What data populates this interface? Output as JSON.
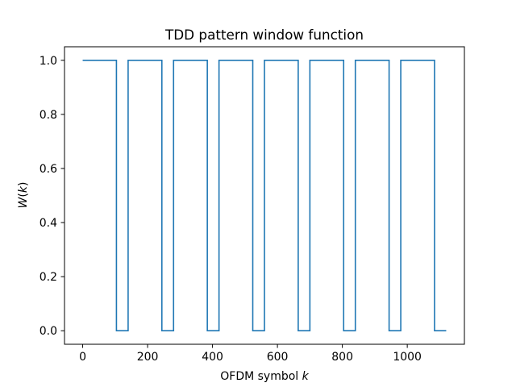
{
  "chart_data": {
    "type": "line",
    "title": "TDD pattern window function",
    "xlabel_prefix": "OFDM symbol ",
    "xlabel_var": "k",
    "ylabel_func": "W",
    "ylabel_var": "k",
    "xlim": [
      -56,
      1176
    ],
    "ylim": [
      -0.05,
      1.05
    ],
    "xticks": [
      0,
      200,
      400,
      600,
      800,
      1000
    ],
    "xtick_labels": [
      "0",
      "200",
      "400",
      "600",
      "800",
      "1000"
    ],
    "yticks": [
      0.0,
      0.2,
      0.4,
      0.6,
      0.8,
      1.0
    ],
    "ytick_labels": [
      "0.0",
      "0.2",
      "0.4",
      "0.6",
      "0.8",
      "1.0"
    ],
    "grid": false,
    "line_color": "#1f77b4",
    "series": [
      {
        "x": [
          0,
          104,
          104,
          140,
          140,
          244,
          244,
          280,
          280,
          384,
          384,
          420,
          420,
          524,
          524,
          560,
          560,
          664,
          664,
          700,
          700,
          804,
          804,
          840,
          840,
          944,
          944,
          980,
          980,
          1084,
          1084,
          1120
        ],
        "y": [
          1,
          1,
          0,
          0,
          1,
          1,
          0,
          0,
          1,
          1,
          0,
          0,
          1,
          1,
          0,
          0,
          1,
          1,
          0,
          0,
          1,
          1,
          0,
          0,
          1,
          1,
          0,
          0,
          1,
          1,
          0,
          0
        ]
      }
    ]
  }
}
